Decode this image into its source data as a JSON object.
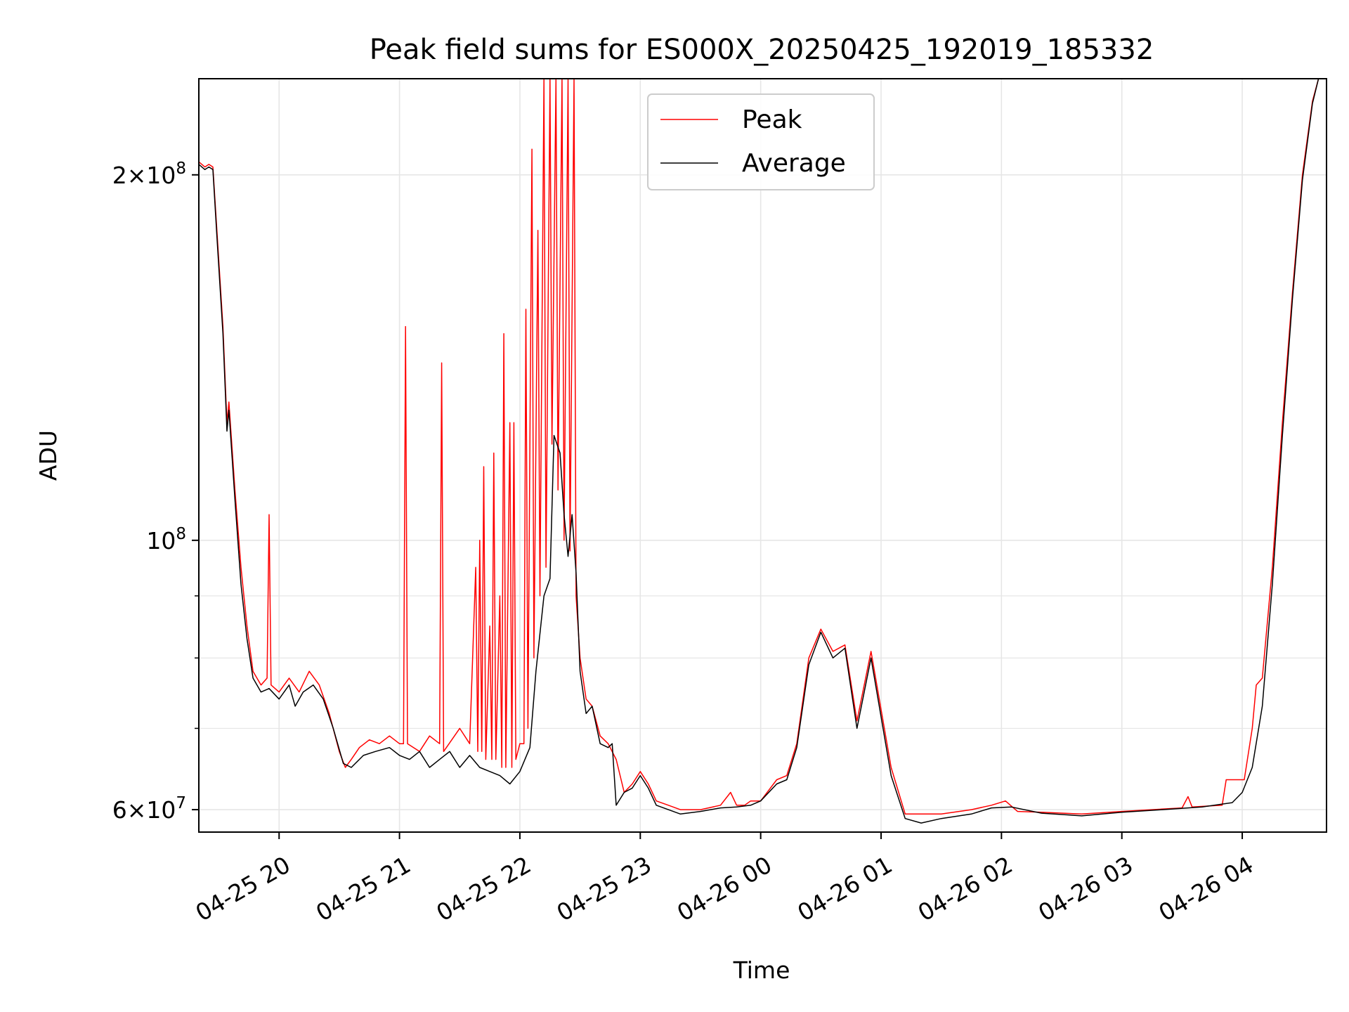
{
  "chart_data": {
    "type": "line",
    "title": "Peak field sums for ES000X_20250425_192019_185332",
    "xlabel": "Time",
    "ylabel": "ADU",
    "yscale": "log",
    "xlim": [
      "2025-04-25 19:20",
      "2025-04-26 04:42"
    ],
    "ylim": [
      57500000,
      240000000
    ],
    "grid": true,
    "legend_position": "top-center",
    "x_ticks": [
      {
        "value": "2025-04-25 20:00",
        "label": "04-25 20"
      },
      {
        "value": "2025-04-25 21:00",
        "label": "04-25 21"
      },
      {
        "value": "2025-04-25 22:00",
        "label": "04-25 22"
      },
      {
        "value": "2025-04-25 23:00",
        "label": "04-25 23"
      },
      {
        "value": "2025-04-26 00:00",
        "label": "04-26 00"
      },
      {
        "value": "2025-04-26 01:00",
        "label": "04-26 01"
      },
      {
        "value": "2025-04-26 02:00",
        "label": "04-26 02"
      },
      {
        "value": "2025-04-26 03:00",
        "label": "04-26 03"
      },
      {
        "value": "2025-04-26 04:00",
        "label": "04-26 04"
      }
    ],
    "y_ticks": [
      {
        "value": 60000000,
        "base": "6",
        "exp": "7"
      },
      {
        "value": 100000000,
        "base": "",
        "exp": "8"
      },
      {
        "value": 200000000,
        "base": "2",
        "exp": "8"
      }
    ],
    "y_minor": [
      70000000,
      80000000,
      90000000
    ],
    "series": [
      {
        "name": "Peak",
        "color": "#ff0000",
        "points": [
          [
            "2025-04-25 19:20",
            205000000
          ],
          [
            "2025-04-25 19:23",
            203000000
          ],
          [
            "2025-04-25 19:25",
            204000000
          ],
          [
            "2025-04-25 19:27",
            203000000
          ],
          [
            "2025-04-25 19:29",
            180000000
          ],
          [
            "2025-04-25 19:32",
            150000000
          ],
          [
            "2025-04-25 19:34",
            125000000
          ],
          [
            "2025-04-25 19:35",
            130000000
          ],
          [
            "2025-04-25 19:38",
            110000000
          ],
          [
            "2025-04-25 19:41",
            95000000
          ],
          [
            "2025-04-25 19:44",
            85000000
          ],
          [
            "2025-04-25 19:47",
            78000000
          ],
          [
            "2025-04-25 19:51",
            76000000
          ],
          [
            "2025-04-25 19:54",
            77000000
          ],
          [
            "2025-04-25 19:55",
            105000000
          ],
          [
            "2025-04-25 19:56",
            76000000
          ],
          [
            "2025-04-25 20:00",
            75000000
          ],
          [
            "2025-04-25 20:05",
            77000000
          ],
          [
            "2025-04-25 20:10",
            75000000
          ],
          [
            "2025-04-25 20:15",
            78000000
          ],
          [
            "2025-04-25 20:20",
            76000000
          ],
          [
            "2025-04-25 20:25",
            72000000
          ],
          [
            "2025-04-25 20:30",
            67000000
          ],
          [
            "2025-04-25 20:33",
            65000000
          ],
          [
            "2025-04-25 20:36",
            66000000
          ],
          [
            "2025-04-25 20:40",
            67500000
          ],
          [
            "2025-04-25 20:45",
            68500000
          ],
          [
            "2025-04-25 20:50",
            68000000
          ],
          [
            "2025-04-25 20:55",
            69000000
          ],
          [
            "2025-04-25 21:00",
            68000000
          ],
          [
            "2025-04-25 21:02",
            68000000
          ],
          [
            "2025-04-25 21:03",
            150000000
          ],
          [
            "2025-04-25 21:04",
            68000000
          ],
          [
            "2025-04-25 21:10",
            67000000
          ],
          [
            "2025-04-25 21:15",
            69000000
          ],
          [
            "2025-04-25 21:20",
            68000000
          ],
          [
            "2025-04-25 21:21",
            140000000
          ],
          [
            "2025-04-25 21:22",
            67000000
          ],
          [
            "2025-04-25 21:30",
            70000000
          ],
          [
            "2025-04-25 21:35",
            68000000
          ],
          [
            "2025-04-25 21:38",
            95000000
          ],
          [
            "2025-04-25 21:39",
            67000000
          ],
          [
            "2025-04-25 21:40",
            100000000
          ],
          [
            "2025-04-25 21:41",
            67000000
          ],
          [
            "2025-04-25 21:42",
            115000000
          ],
          [
            "2025-04-25 21:43",
            66000000
          ],
          [
            "2025-04-25 21:45",
            85000000
          ],
          [
            "2025-04-25 21:46",
            66000000
          ],
          [
            "2025-04-25 21:47",
            118000000
          ],
          [
            "2025-04-25 21:48",
            66000000
          ],
          [
            "2025-04-25 21:50",
            90000000
          ],
          [
            "2025-04-25 21:51",
            65000000
          ],
          [
            "2025-04-25 21:52",
            148000000
          ],
          [
            "2025-04-25 21:53",
            65000000
          ],
          [
            "2025-04-25 21:55",
            125000000
          ],
          [
            "2025-04-25 21:56",
            65000000
          ],
          [
            "2025-04-25 21:57",
            125000000
          ],
          [
            "2025-04-25 21:58",
            66000000
          ],
          [
            "2025-04-25 22:00",
            68000000
          ],
          [
            "2025-04-25 22:02",
            68000000
          ],
          [
            "2025-04-25 22:03",
            155000000
          ],
          [
            "2025-04-25 22:04",
            70000000
          ],
          [
            "2025-04-25 22:06",
            210000000
          ],
          [
            "2025-04-25 22:07",
            80000000
          ],
          [
            "2025-04-25 22:09",
            180000000
          ],
          [
            "2025-04-25 22:10",
            90000000
          ],
          [
            "2025-04-25 22:12",
            240000000
          ],
          [
            "2025-04-25 22:13",
            95000000
          ],
          [
            "2025-04-25 22:15",
            240000000
          ],
          [
            "2025-04-25 22:16",
            120000000
          ],
          [
            "2025-04-25 22:18",
            240000000
          ],
          [
            "2025-04-25 22:19",
            110000000
          ],
          [
            "2025-04-25 22:21",
            240000000
          ],
          [
            "2025-04-25 22:22",
            100000000
          ],
          [
            "2025-04-25 22:24",
            240000000
          ],
          [
            "2025-04-25 22:25",
            98000000
          ],
          [
            "2025-04-25 22:27",
            240000000
          ],
          [
            "2025-04-25 22:28",
            90000000
          ],
          [
            "2025-04-25 22:30",
            80000000
          ],
          [
            "2025-04-25 22:33",
            74000000
          ],
          [
            "2025-04-25 22:36",
            73000000
          ],
          [
            "2025-04-25 22:40",
            69000000
          ],
          [
            "2025-04-25 22:44",
            68000000
          ],
          [
            "2025-04-25 22:48",
            66000000
          ],
          [
            "2025-04-25 22:52",
            62000000
          ],
          [
            "2025-04-25 22:56",
            63000000
          ],
          [
            "2025-04-25 23:00",
            64500000
          ],
          [
            "2025-04-25 23:04",
            63000000
          ],
          [
            "2025-04-25 23:08",
            61000000
          ],
          [
            "2025-04-25 23:14",
            60500000
          ],
          [
            "2025-04-25 23:20",
            60000000
          ],
          [
            "2025-04-25 23:30",
            60000000
          ],
          [
            "2025-04-25 23:40",
            60500000
          ],
          [
            "2025-04-25 23:45",
            62000000
          ],
          [
            "2025-04-25 23:48",
            60500000
          ],
          [
            "2025-04-25 23:52",
            60500000
          ],
          [
            "2025-04-25 23:55",
            61000000
          ],
          [
            "2025-04-26 00:00",
            61000000
          ],
          [
            "2025-04-26 00:08",
            63500000
          ],
          [
            "2025-04-26 00:13",
            64000000
          ],
          [
            "2025-04-26 00:18",
            68000000
          ],
          [
            "2025-04-26 00:24",
            80000000
          ],
          [
            "2025-04-26 00:30",
            84500000
          ],
          [
            "2025-04-26 00:36",
            81000000
          ],
          [
            "2025-04-26 00:42",
            82000000
          ],
          [
            "2025-04-26 00:48",
            71000000
          ],
          [
            "2025-04-26 00:55",
            81000000
          ],
          [
            "2025-04-26 01:05",
            65000000
          ],
          [
            "2025-04-26 01:12",
            59500000
          ],
          [
            "2025-04-26 01:30",
            59500000
          ],
          [
            "2025-04-26 01:45",
            60000000
          ],
          [
            "2025-04-26 01:55",
            60500000
          ],
          [
            "2025-04-26 02:02",
            61000000
          ],
          [
            "2025-04-26 02:08",
            59800000
          ],
          [
            "2025-04-26 02:20",
            59700000
          ],
          [
            "2025-04-26 02:40",
            59500000
          ],
          [
            "2025-04-26 03:00",
            59800000
          ],
          [
            "2025-04-26 03:15",
            60000000
          ],
          [
            "2025-04-26 03:30",
            60200000
          ],
          [
            "2025-04-26 03:33",
            61500000
          ],
          [
            "2025-04-26 03:35",
            60300000
          ],
          [
            "2025-04-26 03:50",
            60500000
          ],
          [
            "2025-04-26 03:52",
            63500000
          ],
          [
            "2025-04-26 03:56",
            63500000
          ],
          [
            "2025-04-26 04:01",
            63500000
          ],
          [
            "2025-04-26 04:05",
            70000000
          ],
          [
            "2025-04-26 04:07",
            76000000
          ],
          [
            "2025-04-26 04:10",
            77000000
          ],
          [
            "2025-04-26 04:15",
            95000000
          ],
          [
            "2025-04-26 04:20",
            125000000
          ],
          [
            "2025-04-26 04:25",
            160000000
          ],
          [
            "2025-04-26 04:30",
            200000000
          ],
          [
            "2025-04-26 04:35",
            230000000
          ],
          [
            "2025-04-26 04:38",
            240000000
          ]
        ]
      },
      {
        "name": "Average",
        "color": "#000000",
        "points": [
          [
            "2025-04-25 19:20",
            204000000
          ],
          [
            "2025-04-25 19:23",
            202000000
          ],
          [
            "2025-04-25 19:25",
            203000000
          ],
          [
            "2025-04-25 19:27",
            202000000
          ],
          [
            "2025-04-25 19:29",
            178000000
          ],
          [
            "2025-04-25 19:32",
            148000000
          ],
          [
            "2025-04-25 19:34",
            123000000
          ],
          [
            "2025-04-25 19:35",
            128000000
          ],
          [
            "2025-04-25 19:38",
            108000000
          ],
          [
            "2025-04-25 19:41",
            92000000
          ],
          [
            "2025-04-25 19:44",
            83000000
          ],
          [
            "2025-04-25 19:47",
            77000000
          ],
          [
            "2025-04-25 19:51",
            75000000
          ],
          [
            "2025-04-25 19:55",
            75500000
          ],
          [
            "2025-04-25 20:00",
            74000000
          ],
          [
            "2025-04-25 20:05",
            76000000
          ],
          [
            "2025-04-25 20:08",
            73000000
          ],
          [
            "2025-04-25 20:12",
            75000000
          ],
          [
            "2025-04-25 20:17",
            76000000
          ],
          [
            "2025-04-25 20:22",
            74000000
          ],
          [
            "2025-04-25 20:27",
            70000000
          ],
          [
            "2025-04-25 20:32",
            65500000
          ],
          [
            "2025-04-25 20:36",
            65000000
          ],
          [
            "2025-04-25 20:42",
            66500000
          ],
          [
            "2025-04-25 20:48",
            67000000
          ],
          [
            "2025-04-25 20:55",
            67500000
          ],
          [
            "2025-04-25 21:00",
            66500000
          ],
          [
            "2025-04-25 21:05",
            66000000
          ],
          [
            "2025-04-25 21:10",
            67000000
          ],
          [
            "2025-04-25 21:15",
            65000000
          ],
          [
            "2025-04-25 21:20",
            66000000
          ],
          [
            "2025-04-25 21:25",
            67000000
          ],
          [
            "2025-04-25 21:30",
            65000000
          ],
          [
            "2025-04-25 21:35",
            66500000
          ],
          [
            "2025-04-25 21:40",
            65000000
          ],
          [
            "2025-04-25 21:45",
            64500000
          ],
          [
            "2025-04-25 21:50",
            64000000
          ],
          [
            "2025-04-25 21:55",
            63000000
          ],
          [
            "2025-04-25 22:00",
            64500000
          ],
          [
            "2025-04-25 22:05",
            67500000
          ],
          [
            "2025-04-25 22:08",
            78000000
          ],
          [
            "2025-04-25 22:12",
            90000000
          ],
          [
            "2025-04-25 22:15",
            93000000
          ],
          [
            "2025-04-25 22:17",
            122000000
          ],
          [
            "2025-04-25 22:20",
            118000000
          ],
          [
            "2025-04-25 22:22",
            105000000
          ],
          [
            "2025-04-25 22:24",
            97000000
          ],
          [
            "2025-04-25 22:26",
            105000000
          ],
          [
            "2025-04-25 22:28",
            94000000
          ],
          [
            "2025-04-25 22:30",
            78000000
          ],
          [
            "2025-04-25 22:33",
            72000000
          ],
          [
            "2025-04-25 22:36",
            73000000
          ],
          [
            "2025-04-25 22:40",
            68000000
          ],
          [
            "2025-04-25 22:44",
            67500000
          ],
          [
            "2025-04-25 22:46",
            68000000
          ],
          [
            "2025-04-25 22:48",
            60500000
          ],
          [
            "2025-04-25 22:52",
            62000000
          ],
          [
            "2025-04-25 22:56",
            62500000
          ],
          [
            "2025-04-25 23:00",
            64000000
          ],
          [
            "2025-04-25 23:04",
            62500000
          ],
          [
            "2025-04-25 23:08",
            60500000
          ],
          [
            "2025-04-25 23:14",
            60000000
          ],
          [
            "2025-04-25 23:20",
            59500000
          ],
          [
            "2025-04-25 23:30",
            59800000
          ],
          [
            "2025-04-25 23:40",
            60200000
          ],
          [
            "2025-04-25 23:48",
            60300000
          ],
          [
            "2025-04-25 23:55",
            60500000
          ],
          [
            "2025-04-26 00:00",
            61000000
          ],
          [
            "2025-04-26 00:08",
            63000000
          ],
          [
            "2025-04-26 00:13",
            63500000
          ],
          [
            "2025-04-26 00:18",
            67500000
          ],
          [
            "2025-04-26 00:24",
            79000000
          ],
          [
            "2025-04-26 00:30",
            84000000
          ],
          [
            "2025-04-26 00:36",
            80000000
          ],
          [
            "2025-04-26 00:42",
            81500000
          ],
          [
            "2025-04-26 00:48",
            70000000
          ],
          [
            "2025-04-26 00:55",
            80000000
          ],
          [
            "2025-04-26 01:05",
            64000000
          ],
          [
            "2025-04-26 01:12",
            59000000
          ],
          [
            "2025-04-26 01:20",
            58500000
          ],
          [
            "2025-04-26 01:30",
            59000000
          ],
          [
            "2025-04-26 01:45",
            59500000
          ],
          [
            "2025-04-26 01:55",
            60200000
          ],
          [
            "2025-04-26 02:05",
            60300000
          ],
          [
            "2025-04-26 02:20",
            59600000
          ],
          [
            "2025-04-26 02:40",
            59300000
          ],
          [
            "2025-04-26 03:00",
            59700000
          ],
          [
            "2025-04-26 03:20",
            60000000
          ],
          [
            "2025-04-26 03:40",
            60300000
          ],
          [
            "2025-04-26 03:55",
            60800000
          ],
          [
            "2025-04-26 04:00",
            62000000
          ],
          [
            "2025-04-26 04:05",
            65000000
          ],
          [
            "2025-04-26 04:10",
            73000000
          ],
          [
            "2025-04-26 04:15",
            92000000
          ],
          [
            "2025-04-26 04:20",
            122000000
          ],
          [
            "2025-04-26 04:25",
            158000000
          ],
          [
            "2025-04-26 04:30",
            198000000
          ],
          [
            "2025-04-26 04:35",
            229000000
          ],
          [
            "2025-04-26 04:38",
            240000000
          ]
        ]
      }
    ]
  }
}
